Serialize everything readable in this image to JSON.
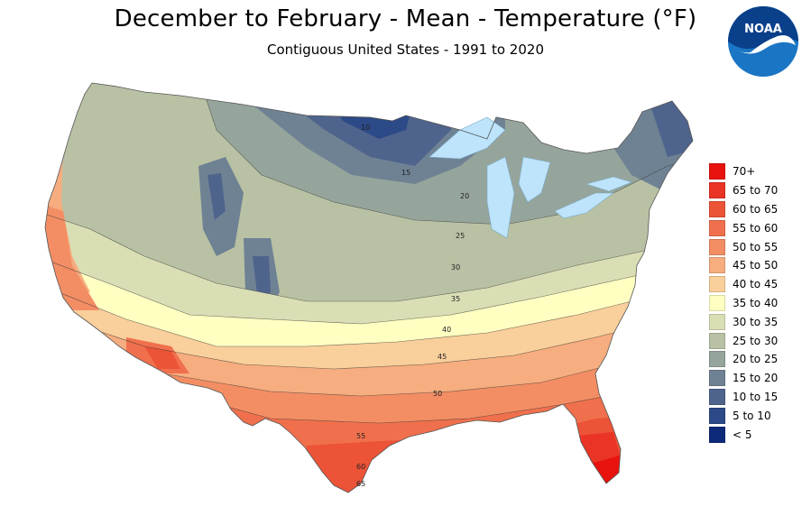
{
  "header": {
    "title": "December to February - Mean - Temperature (°F)",
    "subtitle": "Contiguous United States - 1991 to 2020"
  },
  "logo": {
    "text": "NOAA",
    "icon": "noaa-logo-icon",
    "color": "#1a75c4"
  },
  "legend": {
    "items": [
      {
        "label": "70+",
        "color": "#e8130e"
      },
      {
        "label": "65 to 70",
        "color": "#ea3425"
      },
      {
        "label": "60 to 65",
        "color": "#ec5337"
      },
      {
        "label": "55 to 60",
        "color": "#f0704d"
      },
      {
        "label": "50 to 55",
        "color": "#f38e64"
      },
      {
        "label": "45 to 50",
        "color": "#f6ad7f"
      },
      {
        "label": "40 to 45",
        "color": "#f9cf9b"
      },
      {
        "label": "35 to 40",
        "color": "#ffffc2"
      },
      {
        "label": "30 to 35",
        "color": "#dadeb5"
      },
      {
        "label": "25 to 30",
        "color": "#b9c1a4"
      },
      {
        "label": "20 to 25",
        "color": "#96a59c"
      },
      {
        "label": "15 to 20",
        "color": "#6f8294"
      },
      {
        "label": "10 to 15",
        "color": "#4e648c"
      },
      {
        "label": "5 to 10",
        "color": "#2c4a87"
      },
      {
        "label": "< 5",
        "color": "#0d2a7a"
      }
    ]
  },
  "map": {
    "water_color": "#bde4fa",
    "contour_labels": [
      "10",
      "15",
      "20",
      "25",
      "30",
      "35",
      "40",
      "45",
      "50",
      "55",
      "60",
      "65"
    ]
  }
}
